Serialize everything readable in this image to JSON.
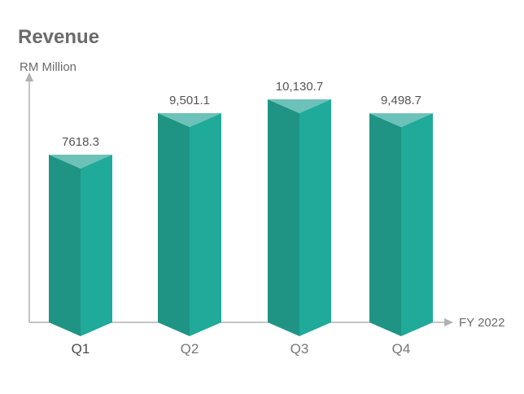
{
  "chart_data": {
    "type": "bar",
    "title": "Revenue",
    "ylabel": "RM Million",
    "xlabel": "FY 2022",
    "categories": [
      "Q1",
      "Q2",
      "Q3",
      "Q4"
    ],
    "values": [
      7618.3,
      9501.1,
      10130.7,
      9498.7
    ],
    "value_labels": [
      "7618.3",
      "9,501.1",
      "10,130.7",
      "9,498.7"
    ],
    "ylim": [
      0,
      12000
    ],
    "grid": false,
    "colors": {
      "bar_left": "#1f9484",
      "bar_right": "#1faa9a",
      "bar_top": "#6cc1b8",
      "axis": "#b0b0b0",
      "text": "#6b6b6b"
    }
  }
}
